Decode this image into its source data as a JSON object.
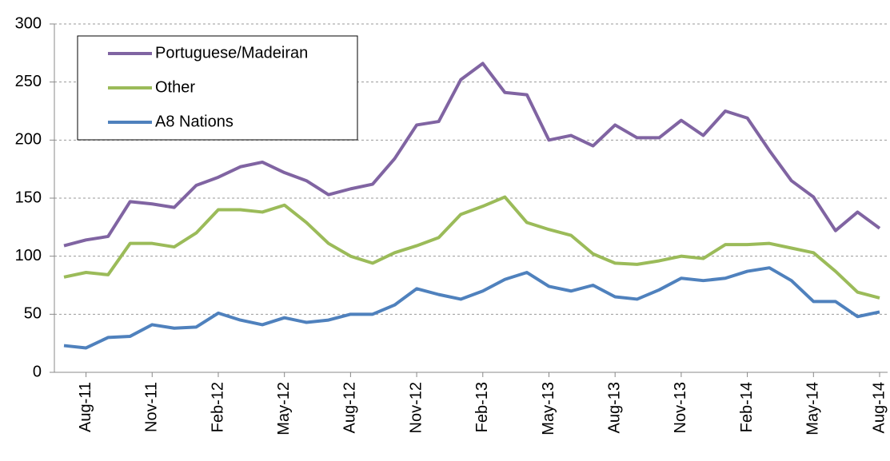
{
  "chart_data": {
    "type": "line",
    "categories": [
      null,
      "Aug-11",
      null,
      null,
      "Nov-11",
      null,
      null,
      "Feb-12",
      null,
      null,
      "May-12",
      null,
      null,
      "Aug-12",
      null,
      null,
      "Nov-12",
      null,
      null,
      "Feb-13",
      null,
      null,
      "May-13",
      null,
      null,
      "Aug-13",
      null,
      null,
      "Nov-13",
      null,
      null,
      "Feb-14",
      null,
      null,
      "May-14",
      null,
      null,
      "Aug-14"
    ],
    "series": [
      {
        "name": "Portuguese/Madeiran",
        "color": "#8064a2",
        "values": [
          109,
          114,
          117,
          147,
          145,
          142,
          161,
          168,
          177,
          181,
          172,
          165,
          153,
          158,
          162,
          184,
          213,
          216,
          252,
          266,
          241,
          239,
          200,
          204,
          195,
          213,
          202,
          202,
          217,
          204,
          225,
          219,
          191,
          165,
          151,
          122,
          138,
          124
        ]
      },
      {
        "name": "Other",
        "color": "#9bbb59",
        "values": [
          82,
          86,
          84,
          111,
          111,
          108,
          120,
          140,
          140,
          138,
          144,
          129,
          111,
          100,
          94,
          103,
          109,
          116,
          136,
          143,
          151,
          129,
          123,
          118,
          102,
          94,
          93,
          96,
          100,
          98,
          110,
          110,
          111,
          107,
          103,
          87,
          69,
          64
        ]
      },
      {
        "name": "A8 Nations",
        "color": "#4f81bd",
        "values": [
          23,
          21,
          30,
          31,
          41,
          38,
          39,
          51,
          45,
          41,
          47,
          43,
          45,
          50,
          50,
          58,
          72,
          67,
          63,
          70,
          80,
          86,
          74,
          70,
          75,
          65,
          63,
          71,
          81,
          79,
          81,
          87,
          90,
          79,
          61,
          61,
          48,
          52
        ]
      }
    ],
    "ylim": [
      0,
      300
    ],
    "yticks": [
      0,
      50,
      100,
      150,
      200,
      250,
      300
    ],
    "grid": true,
    "legend": "top-left"
  }
}
